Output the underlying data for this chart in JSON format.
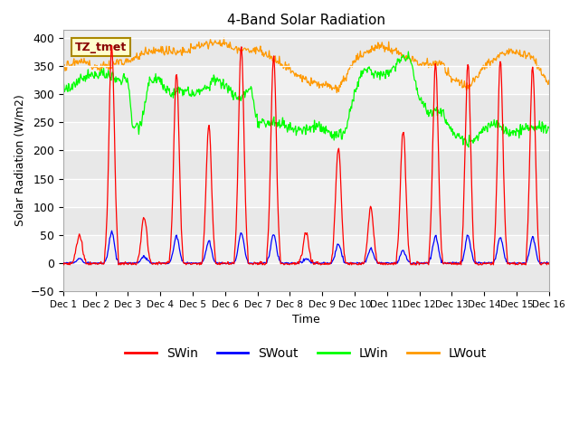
{
  "title": "4-Band Solar Radiation",
  "xlabel": "Time",
  "ylabel": "Solar Radiation (W/m2)",
  "ylim": [
    -50,
    415
  ],
  "yticks": [
    -50,
    0,
    50,
    100,
    150,
    200,
    250,
    300,
    350,
    400
  ],
  "xlim": [
    0,
    15
  ],
  "xtick_labels": [
    "Dec 1",
    "Dec 2",
    "Dec 3",
    "Dec 4",
    "Dec 5",
    "Dec 6",
    "Dec 7",
    "Dec 8",
    "Dec 9",
    "Dec 10",
    "Dec 11",
    "Dec 12",
    "Dec 13",
    "Dec 14",
    "Dec 15",
    "Dec 16"
  ],
  "colors": {
    "SWin": "#ff0000",
    "SWout": "#0000ff",
    "LWin": "#00ff00",
    "LWout": "#ff9900"
  },
  "annotation_text": "TZ_tmet",
  "annotation_bg": "#ffffcc",
  "annotation_border": "#aa8800",
  "bg_band_color": "#e8e8e8",
  "bg_base_color": "#f0f0f0"
}
